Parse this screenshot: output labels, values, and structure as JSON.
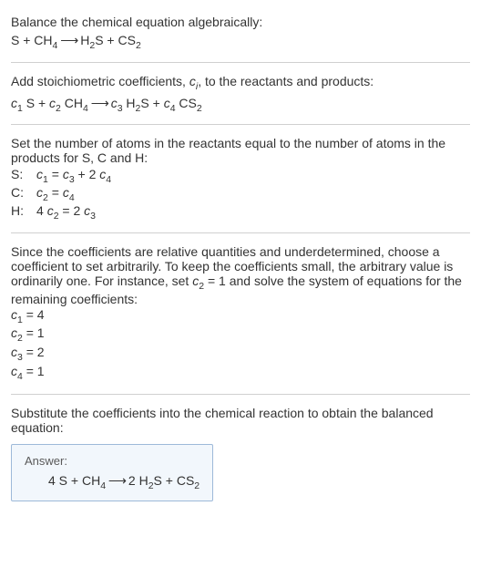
{
  "intro": {
    "line1": "Balance the chemical equation algebraically:",
    "eq_prefix": "S + CH",
    "eq_sub1": "4",
    "eq_arrow": " ⟶ ",
    "eq_mid1": "H",
    "eq_sub2": "2",
    "eq_mid2": "S + CS",
    "eq_sub3": "2"
  },
  "step1": {
    "text_a": "Add stoichiometric coefficients, ",
    "ci": "c",
    "ci_sub": "i",
    "text_b": ", to the reactants and products:",
    "c1": "c",
    "c1s": "1",
    "t1": " S + ",
    "c2": "c",
    "c2s": "2",
    "t2": " CH",
    "t2s": "4",
    "arrow": " ⟶ ",
    "c3": "c",
    "c3s": "3",
    "t3": " H",
    "t3s": "2",
    "t4": "S + ",
    "c4": "c",
    "c4s": "4",
    "t5": " CS",
    "t5s": "2"
  },
  "step2": {
    "text": "Set the number of atoms in the reactants equal to the number of atoms in the products for S, C and H:",
    "rows": [
      {
        "el": "S:",
        "c1": "c",
        "c1s": "1",
        "m1": " = ",
        "c2": "c",
        "c2s": "3",
        "m2": " + 2 ",
        "c3": "c",
        "c3s": "4",
        "m3": ""
      },
      {
        "el": "C:",
        "c1": "c",
        "c1s": "2",
        "m1": " = ",
        "c2": "c",
        "c2s": "4",
        "m2": "",
        "c3": "",
        "c3s": "",
        "m3": ""
      },
      {
        "el": "H:",
        "c1": "4 c",
        "c1s": "2",
        "m1": " = 2 ",
        "c2": "c",
        "c2s": "3",
        "m2": "",
        "c3": "",
        "c3s": "",
        "m3": ""
      }
    ]
  },
  "step3": {
    "text_a": "Since the coefficients are relative quantities and underdetermined, choose a coefficient to set arbitrarily. To keep the coefficients small, the arbitrary value is ordinarily one. For instance, set ",
    "cv": "c",
    "cvs": "2",
    "text_b": " = 1 and solve the system of equations for the remaining coefficients:",
    "results": [
      {
        "c": "c",
        "s": "1",
        "v": " = 4"
      },
      {
        "c": "c",
        "s": "2",
        "v": " = 1"
      },
      {
        "c": "c",
        "s": "3",
        "v": " = 2"
      },
      {
        "c": "c",
        "s": "4",
        "v": " = 1"
      }
    ]
  },
  "step4": {
    "text": "Substitute the coefficients into the chemical reaction to obtain the balanced equation:"
  },
  "answer": {
    "label": "Answer:",
    "p1": "4 S + CH",
    "s1": "4",
    "arrow": " ⟶ ",
    "p2": "2 H",
    "s2": "2",
    "p3": "S + CS",
    "s3": "2"
  }
}
